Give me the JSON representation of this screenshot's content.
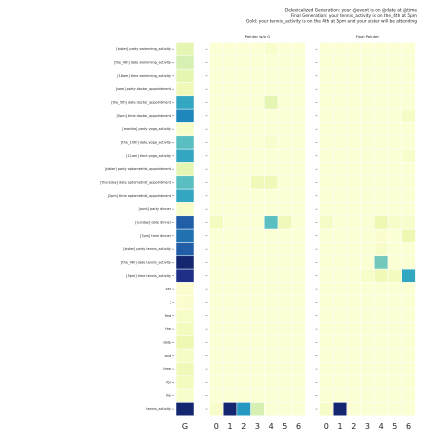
{
  "chart_data": {
    "type": "heatmap",
    "title_lines": [
      "Delexicalized Generation: your @event is on @date at @time",
      "Final Generation: your tennis_activity is on the_4th at 5pm",
      "Gold: your tennis_activity is on the 4th at 5pm and your sister will be attending"
    ],
    "colormap": "YlGnBu",
    "rows": [
      "[sister] party swimming_activity",
      "[the_4th] date swimming_activity",
      "[16am] time swimming_activity",
      "[sam] party doctor_appointment",
      "[the_5th] date doctor_appointment",
      "[5pm] time doctor_appointment",
      "[martha] party yoga_activity",
      "[the_10th] date yoga_activity",
      "[11am] time yoga_activity",
      "[sister] party optometrist_appointment",
      "[thursday] date optometrist_appointment",
      "[2pm] time optometrist_appointment",
      "[aunt] party dinner",
      "[sunday] date dinner",
      "[7pm] time dinner",
      "[sister] party tennis_activity",
      "[the_4th] date tennis_activity",
      "[5pm] time tennis_activity",
      "car",
      ";",
      "find",
      "the",
      "date",
      "and",
      "time",
      "for",
      "my",
      "tennis_activity"
    ],
    "gate": {
      "label": "G",
      "values": [
        0.15,
        0.2,
        0.15,
        0.1,
        0.55,
        0.65,
        0.05,
        0.45,
        0.55,
        0.15,
        0.45,
        0.55,
        0.05,
        0.75,
        0.7,
        0.75,
        0.95,
        0.9,
        0.03,
        0.03,
        0.05,
        0.08,
        0.12,
        0.06,
        0.1,
        0.08,
        0.04,
        0.95
      ]
    },
    "panels": [
      {
        "title": "Pointer w/o G",
        "columns": [
          0,
          1,
          2,
          3,
          4,
          5,
          6
        ],
        "values": [
          [
            0.02,
            0.02,
            0.02,
            0.02,
            0.04,
            0.02,
            0.02
          ],
          [
            0.02,
            0.02,
            0.02,
            0.02,
            0.02,
            0.02,
            0.02
          ],
          [
            0.02,
            0.02,
            0.02,
            0.02,
            0.02,
            0.02,
            0.02
          ],
          [
            0.02,
            0.02,
            0.02,
            0.02,
            0.02,
            0.02,
            0.02
          ],
          [
            0.02,
            0.02,
            0.02,
            0.02,
            0.15,
            0.02,
            0.02
          ],
          [
            0.02,
            0.02,
            0.02,
            0.02,
            0.02,
            0.02,
            0.02
          ],
          [
            0.02,
            0.02,
            0.02,
            0.02,
            0.02,
            0.02,
            0.02
          ],
          [
            0.02,
            0.02,
            0.02,
            0.02,
            0.04,
            0.02,
            0.02
          ],
          [
            0.02,
            0.02,
            0.02,
            0.02,
            0.02,
            0.02,
            0.02
          ],
          [
            0.02,
            0.02,
            0.02,
            0.02,
            0.02,
            0.02,
            0.02
          ],
          [
            0.02,
            0.02,
            0.02,
            0.1,
            0.1,
            0.02,
            0.02
          ],
          [
            0.02,
            0.02,
            0.02,
            0.02,
            0.02,
            0.02,
            0.02
          ],
          [
            0.02,
            0.02,
            0.02,
            0.02,
            0.02,
            0.02,
            0.02
          ],
          [
            0.08,
            0.02,
            0.02,
            0.02,
            0.45,
            0.1,
            0.02
          ],
          [
            0.02,
            0.02,
            0.02,
            0.02,
            0.02,
            0.02,
            0.02
          ],
          [
            0.02,
            0.02,
            0.02,
            0.02,
            0.02,
            0.02,
            0.02
          ],
          [
            0.02,
            0.02,
            0.02,
            0.02,
            0.02,
            0.02,
            0.02
          ],
          [
            0.02,
            0.02,
            0.02,
            0.02,
            0.02,
            0.02,
            0.02
          ],
          [
            0.02,
            0.02,
            0.02,
            0.02,
            0.02,
            0.02,
            0.02
          ],
          [
            0.02,
            0.02,
            0.02,
            0.02,
            0.02,
            0.02,
            0.02
          ],
          [
            0.02,
            0.02,
            0.02,
            0.02,
            0.02,
            0.02,
            0.02
          ],
          [
            0.02,
            0.02,
            0.02,
            0.02,
            0.02,
            0.02,
            0.02
          ],
          [
            0.02,
            0.02,
            0.02,
            0.02,
            0.02,
            0.02,
            0.02
          ],
          [
            0.02,
            0.02,
            0.02,
            0.02,
            0.02,
            0.02,
            0.02
          ],
          [
            0.02,
            0.02,
            0.02,
            0.02,
            0.02,
            0.02,
            0.02
          ],
          [
            0.02,
            0.02,
            0.02,
            0.02,
            0.02,
            0.02,
            0.02
          ],
          [
            0.02,
            0.02,
            0.02,
            0.02,
            0.02,
            0.02,
            0.02
          ],
          [
            0.05,
            0.95,
            0.6,
            0.2,
            0.02,
            0.02,
            0.02
          ]
        ]
      },
      {
        "title": "Final Pointer",
        "columns": [
          0,
          1,
          2,
          3,
          4,
          5,
          6
        ],
        "values": [
          [
            0.02,
            0.02,
            0.02,
            0.02,
            0.02,
            0.02,
            0.02
          ],
          [
            0.02,
            0.02,
            0.02,
            0.02,
            0.02,
            0.02,
            0.02
          ],
          [
            0.02,
            0.02,
            0.02,
            0.02,
            0.02,
            0.02,
            0.02
          ],
          [
            0.02,
            0.02,
            0.02,
            0.02,
            0.02,
            0.02,
            0.02
          ],
          [
            0.02,
            0.02,
            0.02,
            0.02,
            0.02,
            0.02,
            0.02
          ],
          [
            0.02,
            0.02,
            0.02,
            0.02,
            0.02,
            0.02,
            0.06
          ],
          [
            0.02,
            0.02,
            0.02,
            0.02,
            0.02,
            0.02,
            0.02
          ],
          [
            0.02,
            0.02,
            0.02,
            0.02,
            0.02,
            0.02,
            0.02
          ],
          [
            0.02,
            0.02,
            0.02,
            0.02,
            0.02,
            0.02,
            0.04
          ],
          [
            0.02,
            0.02,
            0.02,
            0.02,
            0.02,
            0.02,
            0.02
          ],
          [
            0.02,
            0.02,
            0.02,
            0.02,
            0.02,
            0.02,
            0.02
          ],
          [
            0.02,
            0.02,
            0.02,
            0.02,
            0.02,
            0.02,
            0.02
          ],
          [
            0.02,
            0.02,
            0.02,
            0.02,
            0.02,
            0.02,
            0.02
          ],
          [
            0.06,
            0.02,
            0.02,
            0.02,
            0.12,
            0.05,
            0.04
          ],
          [
            0.02,
            0.02,
            0.02,
            0.02,
            0.03,
            0.02,
            0.12
          ],
          [
            0.02,
            0.02,
            0.02,
            0.02,
            0.05,
            0.02,
            0.02
          ],
          [
            0.02,
            0.02,
            0.02,
            0.02,
            0.4,
            0.02,
            0.02
          ],
          [
            0.02,
            0.02,
            0.02,
            0.05,
            0.1,
            0.08,
            0.55
          ],
          [
            0.02,
            0.02,
            0.02,
            0.02,
            0.02,
            0.02,
            0.02
          ],
          [
            0.02,
            0.02,
            0.02,
            0.02,
            0.02,
            0.02,
            0.02
          ],
          [
            0.02,
            0.02,
            0.02,
            0.02,
            0.02,
            0.02,
            0.02
          ],
          [
            0.02,
            0.02,
            0.02,
            0.02,
            0.02,
            0.02,
            0.02
          ],
          [
            0.02,
            0.02,
            0.02,
            0.02,
            0.02,
            0.02,
            0.02
          ],
          [
            0.02,
            0.02,
            0.02,
            0.02,
            0.02,
            0.02,
            0.02
          ],
          [
            0.02,
            0.02,
            0.02,
            0.02,
            0.02,
            0.02,
            0.02
          ],
          [
            0.02,
            0.02,
            0.02,
            0.02,
            0.02,
            0.02,
            0.02
          ],
          [
            0.02,
            0.02,
            0.02,
            0.02,
            0.02,
            0.02,
            0.02
          ],
          [
            0.05,
            0.95,
            0.02,
            0.02,
            0.02,
            0.02,
            0.02
          ]
        ]
      }
    ]
  }
}
